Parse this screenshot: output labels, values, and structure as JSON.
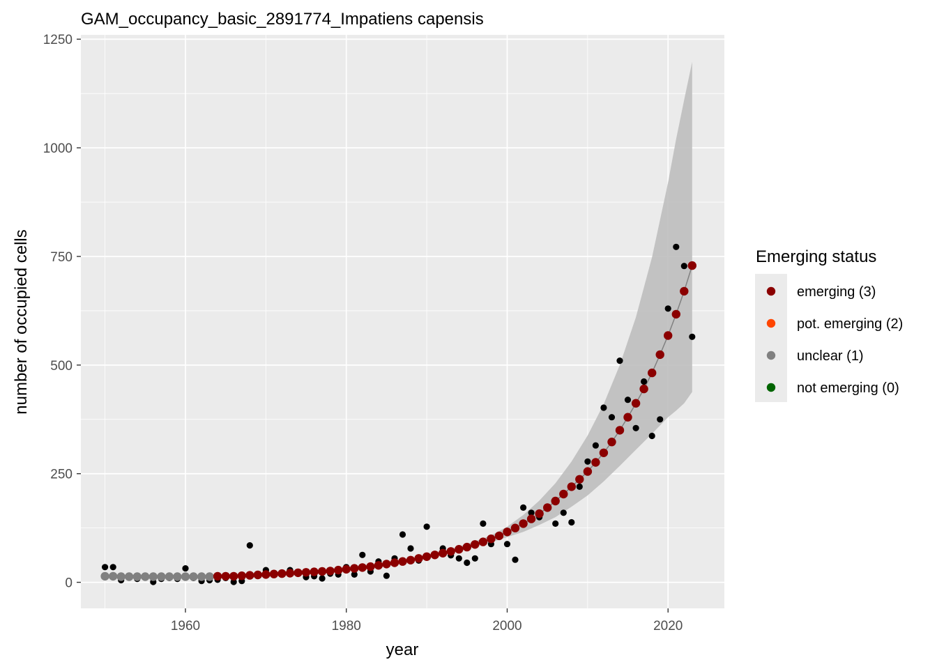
{
  "chart_data": {
    "type": "scatter",
    "title": "GAM_occupancy_basic_2891774_Impatiens capensis",
    "xlabel": "year",
    "ylabel": "number of occupied cells",
    "xlim": [
      1947,
      2027
    ],
    "ylim": [
      -60,
      1260
    ],
    "x_ticks": [
      1960,
      1980,
      2000,
      2020
    ],
    "y_ticks": [
      0,
      250,
      500,
      750,
      1000,
      1250
    ],
    "grid": true,
    "legend": {
      "title": "Emerging status",
      "placement": "right",
      "items": [
        {
          "label": "emerging (3)",
          "color": "#8b0000"
        },
        {
          "label": "pot. emerging (2)",
          "color": "#ff4500"
        },
        {
          "label": "unclear (1)",
          "color": "#808080"
        },
        {
          "label": "not emerging (0)",
          "color": "#006400"
        }
      ]
    },
    "observed": {
      "color": "#000000",
      "points": [
        [
          1950,
          35
        ],
        [
          1951,
          35
        ],
        [
          1952,
          5
        ],
        [
          1953,
          12
        ],
        [
          1954,
          8
        ],
        [
          1955,
          12
        ],
        [
          1956,
          1
        ],
        [
          1957,
          8
        ],
        [
          1958,
          10
        ],
        [
          1959,
          8
        ],
        [
          1960,
          32
        ],
        [
          1961,
          10
        ],
        [
          1962,
          3
        ],
        [
          1963,
          5
        ],
        [
          1964,
          6
        ],
        [
          1965,
          10
        ],
        [
          1966,
          1
        ],
        [
          1967,
          3
        ],
        [
          1968,
          85
        ],
        [
          1969,
          15
        ],
        [
          1970,
          28
        ],
        [
          1971,
          18
        ],
        [
          1972,
          20
        ],
        [
          1973,
          28
        ],
        [
          1974,
          22
        ],
        [
          1975,
          12
        ],
        [
          1976,
          14
        ],
        [
          1977,
          9
        ],
        [
          1978,
          20
        ],
        [
          1979,
          18
        ],
        [
          1980,
          35
        ],
        [
          1981,
          18
        ],
        [
          1982,
          63
        ],
        [
          1983,
          25
        ],
        [
          1984,
          48
        ],
        [
          1985,
          15
        ],
        [
          1986,
          55
        ],
        [
          1987,
          110
        ],
        [
          1988,
          78
        ],
        [
          1989,
          50
        ],
        [
          1990,
          128
        ],
        [
          1991,
          65
        ],
        [
          1992,
          78
        ],
        [
          1993,
          62
        ],
        [
          1994,
          55
        ],
        [
          1995,
          45
        ],
        [
          1996,
          55
        ],
        [
          1997,
          135
        ],
        [
          1998,
          88
        ],
        [
          1999,
          108
        ],
        [
          2000,
          88
        ],
        [
          2001,
          52
        ],
        [
          2002,
          172
        ],
        [
          2003,
          160
        ],
        [
          2004,
          150
        ],
        [
          2005,
          170
        ],
        [
          2006,
          135
        ],
        [
          2007,
          160
        ],
        [
          2008,
          138
        ],
        [
          2009,
          220
        ],
        [
          2010,
          278
        ],
        [
          2011,
          315
        ],
        [
          2012,
          402
        ],
        [
          2013,
          380
        ],
        [
          2014,
          510
        ],
        [
          2015,
          420
        ],
        [
          2016,
          355
        ],
        [
          2017,
          462
        ],
        [
          2018,
          337
        ],
        [
          2019,
          375
        ],
        [
          2020,
          630
        ],
        [
          2021,
          772
        ],
        [
          2022,
          728
        ],
        [
          2023,
          565
        ]
      ]
    },
    "fitted": {
      "line_color": "#808080",
      "ribbon_color": "#bebebe",
      "points": [
        {
          "x": 1950,
          "y": 14,
          "status": 1
        },
        {
          "x": 1951,
          "y": 14,
          "status": 1
        },
        {
          "x": 1952,
          "y": 13,
          "status": 1
        },
        {
          "x": 1953,
          "y": 13,
          "status": 1
        },
        {
          "x": 1954,
          "y": 13,
          "status": 1
        },
        {
          "x": 1955,
          "y": 13,
          "status": 1
        },
        {
          "x": 1956,
          "y": 13,
          "status": 1
        },
        {
          "x": 1957,
          "y": 13,
          "status": 1
        },
        {
          "x": 1958,
          "y": 13,
          "status": 1
        },
        {
          "x": 1959,
          "y": 13,
          "status": 1
        },
        {
          "x": 1960,
          "y": 13,
          "status": 1
        },
        {
          "x": 1961,
          "y": 13,
          "status": 1
        },
        {
          "x": 1962,
          "y": 13,
          "status": 1
        },
        {
          "x": 1963,
          "y": 13,
          "status": 1
        },
        {
          "x": 1964,
          "y": 14,
          "status": 3
        },
        {
          "x": 1965,
          "y": 14,
          "status": 3
        },
        {
          "x": 1966,
          "y": 14,
          "status": 3
        },
        {
          "x": 1967,
          "y": 15,
          "status": 3
        },
        {
          "x": 1968,
          "y": 16,
          "status": 3
        },
        {
          "x": 1969,
          "y": 17,
          "status": 3
        },
        {
          "x": 1970,
          "y": 18,
          "status": 3
        },
        {
          "x": 1971,
          "y": 19,
          "status": 3
        },
        {
          "x": 1972,
          "y": 20,
          "status": 3
        },
        {
          "x": 1973,
          "y": 21,
          "status": 3
        },
        {
          "x": 1974,
          "y": 22,
          "status": 3
        },
        {
          "x": 1975,
          "y": 23,
          "status": 3
        },
        {
          "x": 1976,
          "y": 24,
          "status": 3
        },
        {
          "x": 1977,
          "y": 25,
          "status": 3
        },
        {
          "x": 1978,
          "y": 26,
          "status": 3
        },
        {
          "x": 1979,
          "y": 28,
          "status": 3
        },
        {
          "x": 1980,
          "y": 30,
          "status": 3
        },
        {
          "x": 1981,
          "y": 32,
          "status": 3
        },
        {
          "x": 1982,
          "y": 34,
          "status": 3
        },
        {
          "x": 1983,
          "y": 36,
          "status": 3
        },
        {
          "x": 1984,
          "y": 39,
          "status": 3
        },
        {
          "x": 1985,
          "y": 42,
          "status": 3
        },
        {
          "x": 1986,
          "y": 45,
          "status": 3
        },
        {
          "x": 1987,
          "y": 48,
          "status": 3
        },
        {
          "x": 1988,
          "y": 51,
          "status": 3
        },
        {
          "x": 1989,
          "y": 55,
          "status": 3
        },
        {
          "x": 1990,
          "y": 59,
          "status": 3
        },
        {
          "x": 1991,
          "y": 63,
          "status": 3
        },
        {
          "x": 1992,
          "y": 67,
          "status": 3
        },
        {
          "x": 1993,
          "y": 71,
          "status": 3
        },
        {
          "x": 1994,
          "y": 76,
          "status": 3
        },
        {
          "x": 1995,
          "y": 81,
          "status": 3
        },
        {
          "x": 1996,
          "y": 87,
          "status": 3
        },
        {
          "x": 1997,
          "y": 93,
          "status": 3
        },
        {
          "x": 1998,
          "y": 100,
          "status": 3
        },
        {
          "x": 1999,
          "y": 107,
          "status": 3
        },
        {
          "x": 2000,
          "y": 116,
          "status": 3
        },
        {
          "x": 2001,
          "y": 125,
          "status": 3
        },
        {
          "x": 2002,
          "y": 135,
          "status": 3
        },
        {
          "x": 2003,
          "y": 146,
          "status": 3
        },
        {
          "x": 2004,
          "y": 158,
          "status": 3
        },
        {
          "x": 2005,
          "y": 172,
          "status": 3
        },
        {
          "x": 2006,
          "y": 187,
          "status": 3
        },
        {
          "x": 2007,
          "y": 203,
          "status": 3
        },
        {
          "x": 2008,
          "y": 220,
          "status": 3
        },
        {
          "x": 2009,
          "y": 237,
          "status": 3
        },
        {
          "x": 2010,
          "y": 255,
          "status": 3
        },
        {
          "x": 2011,
          "y": 276,
          "status": 3
        },
        {
          "x": 2012,
          "y": 298,
          "status": 3
        },
        {
          "x": 2013,
          "y": 323,
          "status": 3
        },
        {
          "x": 2014,
          "y": 350,
          "status": 3
        },
        {
          "x": 2015,
          "y": 380,
          "status": 3
        },
        {
          "x": 2016,
          "y": 412,
          "status": 3
        },
        {
          "x": 2017,
          "y": 445,
          "status": 3
        },
        {
          "x": 2018,
          "y": 482,
          "status": 3
        },
        {
          "x": 2019,
          "y": 524,
          "status": 3
        },
        {
          "x": 2020,
          "y": 568,
          "status": 3
        },
        {
          "x": 2021,
          "y": 617,
          "status": 3
        },
        {
          "x": 2022,
          "y": 670,
          "status": 3
        },
        {
          "x": 2023,
          "y": 729,
          "status": 3
        }
      ],
      "ribbon": [
        [
          1990,
          59,
          59
        ],
        [
          1992,
          65,
          70
        ],
        [
          1994,
          72,
          82
        ],
        [
          1996,
          82,
          94
        ],
        [
          1998,
          92,
          108
        ],
        [
          2000,
          104,
          128
        ],
        [
          2002,
          116,
          155
        ],
        [
          2004,
          132,
          188
        ],
        [
          2006,
          150,
          228
        ],
        [
          2008,
          174,
          278
        ],
        [
          2010,
          200,
          338
        ],
        [
          2012,
          232,
          410
        ],
        [
          2014,
          268,
          500
        ],
        [
          2016,
          305,
          610
        ],
        [
          2018,
          342,
          748
        ],
        [
          2020,
          380,
          920
        ],
        [
          2021,
          395,
          1020
        ],
        [
          2022,
          412,
          1110
        ],
        [
          2023,
          438,
          1198
        ]
      ]
    }
  }
}
